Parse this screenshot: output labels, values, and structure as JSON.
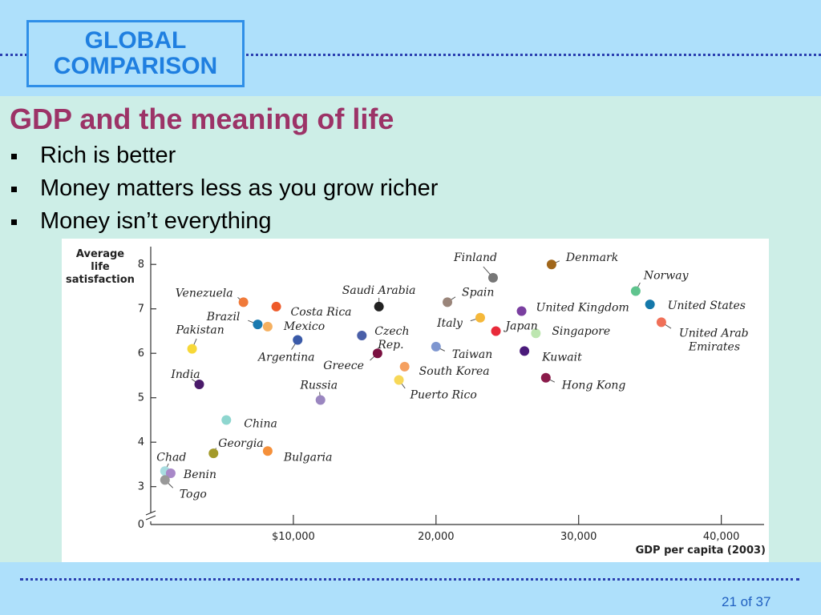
{
  "header": {
    "badge_line1": "GLOBAL",
    "badge_line2": "COMPARISON"
  },
  "slide": {
    "title": "GDP and the meaning of life",
    "bullets": [
      "Rich is better",
      "Money matters less as you grow richer",
      "Money isn’t everything"
    ],
    "page": "21 of 37"
  },
  "colors": {
    "title": "#9c3367",
    "band": "#aee0fb",
    "body": "#cdeee7",
    "badge_text": "#1f7fe0"
  },
  "chart_data": {
    "type": "scatter",
    "ylabel_lines": [
      "Average",
      "life",
      "satisfaction"
    ],
    "xlabel": "GDP per capita (2003)",
    "xlim": [
      0,
      43000
    ],
    "ylim": [
      2.4,
      8.4
    ],
    "x_ticks": [
      10000,
      20000,
      30000,
      40000
    ],
    "x_tick_labels": [
      "$10,000",
      "20,000",
      "30,000",
      "40,000"
    ],
    "y_ticks": [
      3,
      4,
      5,
      6,
      7,
      8
    ],
    "y_tick_labels": [
      "3",
      "4",
      "5",
      "6",
      "7",
      "8"
    ],
    "y_zero_label": "0",
    "grid": false,
    "axis_break": true,
    "points": [
      {
        "name": "Finland",
        "x": 24000,
        "y": 7.7,
        "color": "#777777"
      },
      {
        "name": "Denmark",
        "x": 28100,
        "y": 8.0,
        "color": "#a0661a"
      },
      {
        "name": "Norway",
        "x": 34000,
        "y": 7.4,
        "color": "#5fc48e"
      },
      {
        "name": "United States",
        "x": 35000,
        "y": 7.1,
        "color": "#1478aa"
      },
      {
        "name": "United Kingdom",
        "x": 26000,
        "y": 6.95,
        "color": "#7a3fa0"
      },
      {
        "name": "United Arab Emirates",
        "x": 35800,
        "y": 6.7,
        "color": "#f07058"
      },
      {
        "name": "Singapore",
        "x": 27000,
        "y": 6.45,
        "color": "#bde6b0"
      },
      {
        "name": "Japan",
        "x": 24200,
        "y": 6.5,
        "color": "#e82a3a"
      },
      {
        "name": "Italy",
        "x": 23100,
        "y": 6.8,
        "color": "#f5b83a"
      },
      {
        "name": "Spain",
        "x": 20800,
        "y": 7.15,
        "color": "#9a857a"
      },
      {
        "name": "Kuwait",
        "x": 26200,
        "y": 6.05,
        "color": "#4a1a7a"
      },
      {
        "name": "Hong Kong",
        "x": 27700,
        "y": 5.45,
        "color": "#8a1a4a"
      },
      {
        "name": "Saudi Arabia",
        "x": 16000,
        "y": 7.05,
        "color": "#222222"
      },
      {
        "name": "Czech Rep.",
        "x": 14800,
        "y": 6.4,
        "color": "#4a5fa8"
      },
      {
        "name": "Greece",
        "x": 15900,
        "y": 6.0,
        "color": "#7a1040"
      },
      {
        "name": "Taiwan",
        "x": 20000,
        "y": 6.15,
        "color": "#7e96d0"
      },
      {
        "name": "South Korea",
        "x": 17800,
        "y": 5.7,
        "color": "#f5a060"
      },
      {
        "name": "Puerto Rico",
        "x": 17400,
        "y": 5.4,
        "color": "#f7d858"
      },
      {
        "name": "Costa Rica",
        "x": 8800,
        "y": 7.05,
        "color": "#ee5a2a"
      },
      {
        "name": "Venezuela",
        "x": 6500,
        "y": 7.15,
        "color": "#f07a3a"
      },
      {
        "name": "Brazil",
        "x": 7500,
        "y": 6.65,
        "color": "#1a7ab0"
      },
      {
        "name": "Mexico",
        "x": 8200,
        "y": 6.6,
        "color": "#f5b060"
      },
      {
        "name": "Argentina",
        "x": 10300,
        "y": 6.3,
        "color": "#3a5aa8"
      },
      {
        "name": "Pakistan",
        "x": 2900,
        "y": 6.1,
        "color": "#f7d838"
      },
      {
        "name": "India",
        "x": 3400,
        "y": 5.3,
        "color": "#4a1a6a"
      },
      {
        "name": "Russia",
        "x": 11900,
        "y": 4.95,
        "color": "#9a86c0"
      },
      {
        "name": "China",
        "x": 5300,
        "y": 4.5,
        "color": "#8ed6cf"
      },
      {
        "name": "Georgia",
        "x": 4400,
        "y": 3.75,
        "color": "#a39a2a"
      },
      {
        "name": "Bulgaria",
        "x": 8200,
        "y": 3.8,
        "color": "#f5903a"
      },
      {
        "name": "Chad",
        "x": 1000,
        "y": 3.35,
        "color": "#a8dce0"
      },
      {
        "name": "Benin",
        "x": 1400,
        "y": 3.3,
        "color": "#a888c8"
      },
      {
        "name": "Togo",
        "x": 1000,
        "y": 3.15,
        "color": "#999999"
      }
    ]
  }
}
